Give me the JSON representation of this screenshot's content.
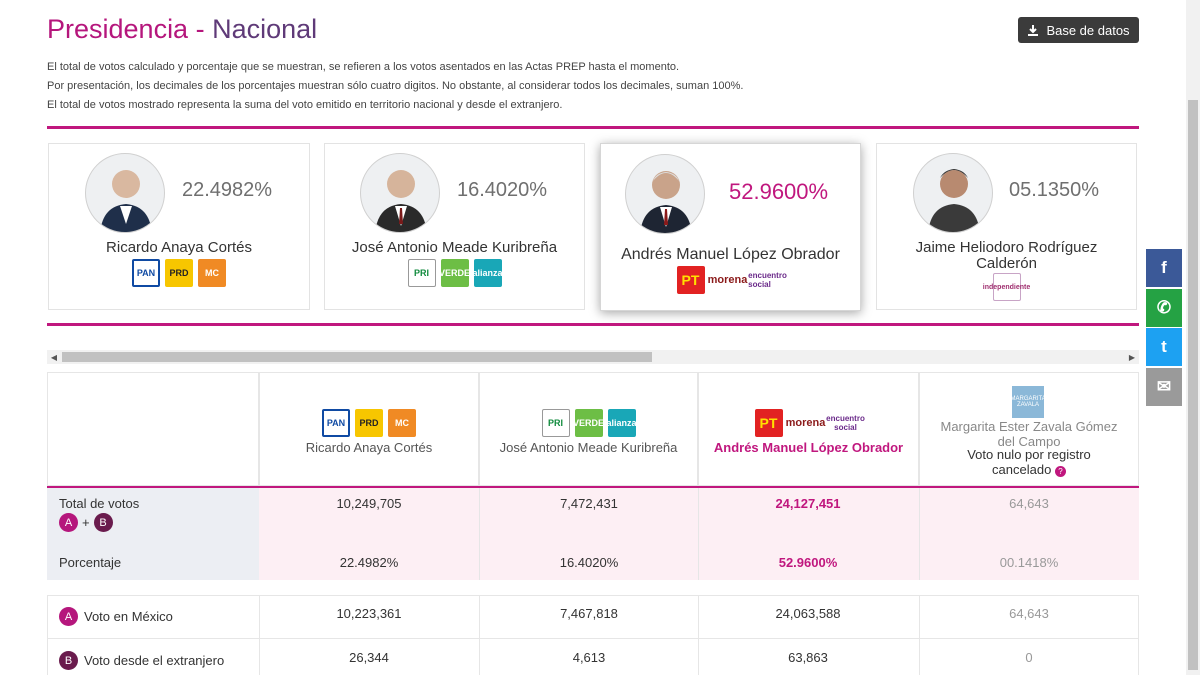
{
  "header": {
    "title": "Presidencia",
    "separator": " - ",
    "subtitle": "Nacional",
    "database_button": "Base de datos"
  },
  "notes": [
    "El total de votos calculado y porcentaje que se muestran, se refieren a los votos asentados en las Actas PREP hasta el momento.",
    "Por presentación, los decimales de los porcentajes muestran sólo cuatro digitos. No obstante, al considerar todos los decimales, suman 100%.",
    "El total de votos mostrado representa la suma del voto emitido en territorio nacional y desde el extranjero."
  ],
  "candidates": [
    {
      "name": "Ricardo Anaya Cortés",
      "percent": "22.4982%",
      "parties": [
        "PAN",
        "PRD",
        "MC"
      ]
    },
    {
      "name": "José Antonio Meade Kuribreña",
      "percent": "16.4020%",
      "parties": [
        "PRI",
        "VERDE",
        "alianza"
      ]
    },
    {
      "name": "Andrés Manuel López Obrador",
      "percent": "52.9600%",
      "parties": [
        "PT",
        "morena",
        "encuentro social"
      ]
    },
    {
      "name": "Jaime Heliodoro Rodríguez Calderón",
      "percent": "05.1350%",
      "parties": [
        "independiente"
      ]
    }
  ],
  "table": {
    "columns": [
      {
        "name": "Ricardo Anaya Cortés",
        "parties": [
          "PAN",
          "PRD",
          "MC"
        ]
      },
      {
        "name": "José Antonio Meade Kuribreña",
        "parties": [
          "PRI",
          "VERDE",
          "alianza"
        ]
      },
      {
        "name": "Andrés Manuel López Obrador",
        "parties": [
          "PT",
          "morena",
          "encuentro social"
        ]
      },
      {
        "name": "Margarita Ester Zavala Gómez del Campo",
        "extra": "Voto nulo por registro cancelado",
        "logo_text": "MARGARITA ZAVALA"
      }
    ],
    "rows": {
      "total_label": "Total de votos",
      "total": [
        "10,249,705",
        "7,472,431",
        "24,127,451",
        "64,643"
      ],
      "percent_label": "Porcentaje",
      "percent": [
        "22.4982%",
        "16.4020%",
        "52.9600%",
        "00.1418%"
      ],
      "mexico_label": "Voto en México",
      "mexico": [
        "10,223,361",
        "7,467,818",
        "24,063,588",
        "64,643"
      ],
      "abroad_label": "Voto desde el extranjero",
      "abroad": [
        "26,344",
        "4,613",
        "63,863",
        "0"
      ]
    },
    "tags": {
      "a": "A",
      "b": "B",
      "plus": "+"
    }
  },
  "social": [
    {
      "name": "facebook",
      "glyph": "f",
      "color": "#3b5998"
    },
    {
      "name": "whatsapp",
      "glyph": "✆",
      "color": "#25a244"
    },
    {
      "name": "twitter",
      "glyph": "t",
      "color": "#1da1f2"
    },
    {
      "name": "email",
      "glyph": "✉",
      "color": "#9a9a9a"
    }
  ],
  "colors": {
    "brand": "#b5167c",
    "winner": "#c0177e"
  }
}
